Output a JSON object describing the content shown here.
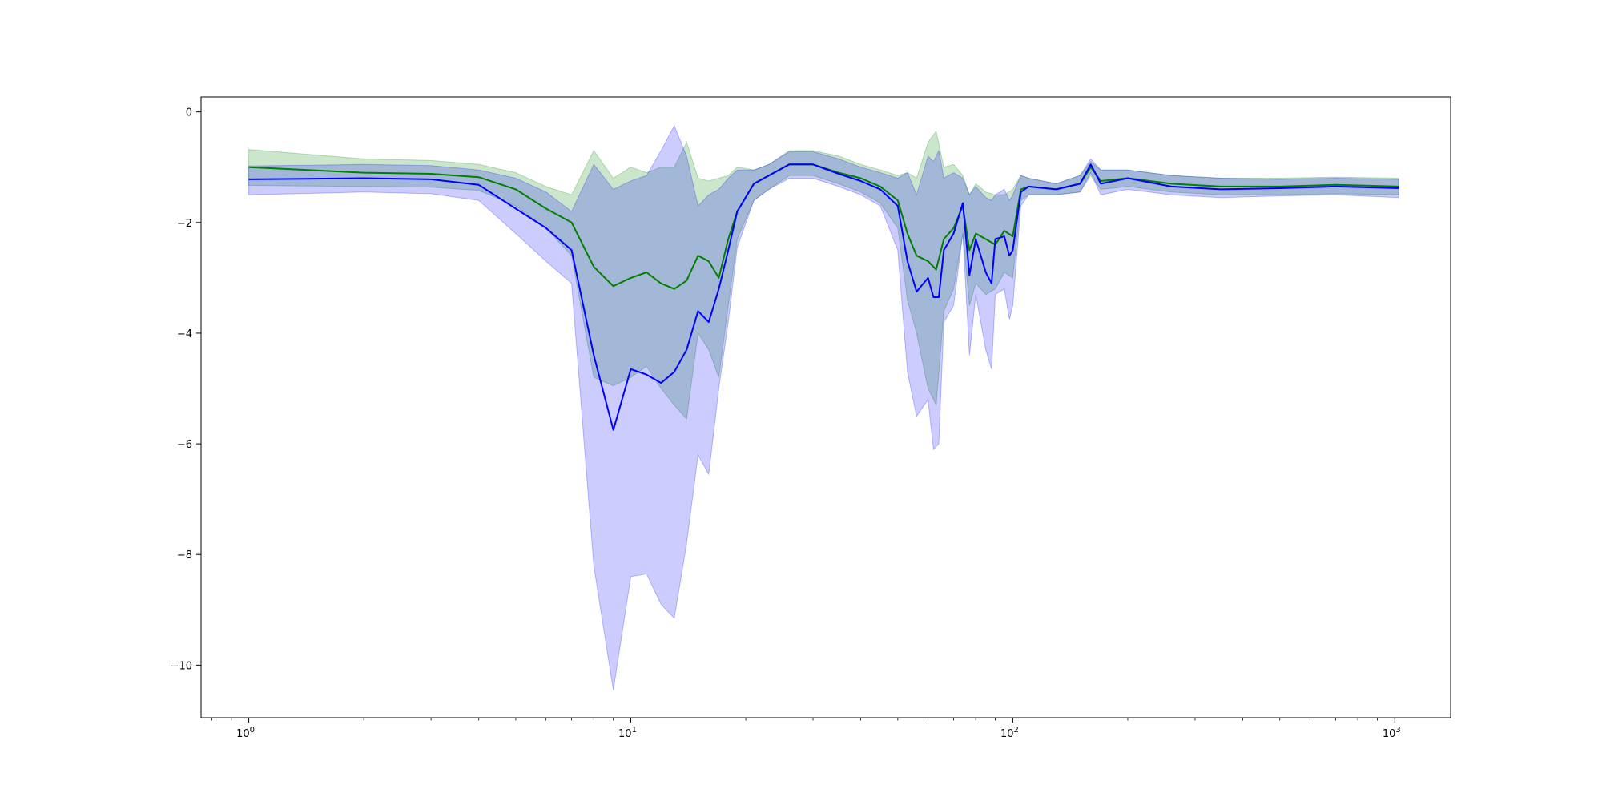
{
  "chart_data": {
    "type": "line",
    "title": "",
    "xlabel": "",
    "ylabel": "",
    "xscale": "log",
    "xlim": [
      0.75,
      1400
    ],
    "ylim": [
      -10.95,
      0.27
    ],
    "grid": false,
    "legend": "none",
    "x_ticks": [
      {
        "value": 1,
        "base": "10",
        "exp": "0"
      },
      {
        "value": 10,
        "base": "10",
        "exp": "1"
      },
      {
        "value": 100,
        "base": "10",
        "exp": "2"
      },
      {
        "value": 1000,
        "base": "10",
        "exp": "3"
      }
    ],
    "y_ticks": [
      {
        "value": 0,
        "label": "0"
      },
      {
        "value": -2,
        "label": "−2"
      },
      {
        "value": -4,
        "label": "−4"
      },
      {
        "value": -6,
        "label": "−6"
      },
      {
        "value": -8,
        "label": "−8"
      },
      {
        "value": -10,
        "label": "−10"
      }
    ],
    "series": [
      {
        "color": "#008000",
        "band_color": "#008000",
        "band_opacity": 0.2,
        "points": [
          [
            1,
            -1.0,
            -0.68,
            -1.33
          ],
          [
            2,
            -1.1,
            -0.85,
            -1.35
          ],
          [
            3,
            -1.12,
            -0.88,
            -1.36
          ],
          [
            4,
            -1.18,
            -0.95,
            -1.42
          ],
          [
            5,
            -1.4,
            -1.1,
            -1.7
          ],
          [
            6,
            -1.75,
            -1.35,
            -2.1
          ],
          [
            7,
            -2.0,
            -1.5,
            -2.6
          ],
          [
            8,
            -2.8,
            -0.7,
            -4.8
          ],
          [
            9,
            -3.15,
            -1.2,
            -4.95
          ],
          [
            10,
            -3.0,
            -1.0,
            -4.8
          ],
          [
            11,
            -2.9,
            -1.1,
            -4.6
          ],
          [
            12,
            -3.1,
            -1.0,
            -5.0
          ],
          [
            13,
            -3.2,
            -1.0,
            -5.3
          ],
          [
            14,
            -3.05,
            -0.55,
            -5.55
          ],
          [
            15,
            -2.6,
            -1.2,
            -4.0
          ],
          [
            16,
            -2.7,
            -1.25,
            -4.3
          ],
          [
            17,
            -3.0,
            -1.2,
            -4.8
          ],
          [
            18,
            -2.3,
            -1.15,
            -3.5
          ],
          [
            19,
            -1.8,
            -1.0,
            -2.3
          ],
          [
            21,
            -1.3,
            -1.05,
            -1.6
          ],
          [
            23,
            -1.15,
            -0.95,
            -1.4
          ],
          [
            26,
            -0.95,
            -0.7,
            -1.15
          ],
          [
            30,
            -0.95,
            -0.7,
            -1.15
          ],
          [
            35,
            -1.1,
            -0.8,
            -1.3
          ],
          [
            40,
            -1.2,
            -0.95,
            -1.45
          ],
          [
            45,
            -1.35,
            -1.05,
            -1.65
          ],
          [
            50,
            -1.6,
            -1.15,
            -2.1
          ],
          [
            53,
            -2.2,
            -1.1,
            -3.4
          ],
          [
            56,
            -2.6,
            -1.2,
            -4.0
          ],
          [
            60,
            -2.7,
            -0.55,
            -5.0
          ],
          [
            63,
            -2.85,
            -0.35,
            -5.3
          ],
          [
            66,
            -2.3,
            -1.0,
            -3.6
          ],
          [
            70,
            -2.1,
            -0.95,
            -3.2
          ],
          [
            74,
            -1.7,
            -1.15,
            -2.2
          ],
          [
            77,
            -2.5,
            -1.5,
            -3.5
          ],
          [
            80,
            -2.2,
            -1.3,
            -3.1
          ],
          [
            85,
            -2.3,
            -1.45,
            -3.3
          ],
          [
            90,
            -2.4,
            -1.5,
            -3.2
          ],
          [
            95,
            -2.15,
            -1.5,
            -2.9
          ],
          [
            100,
            -2.25,
            -1.4,
            -3.0
          ],
          [
            105,
            -1.4,
            -1.15,
            -1.6
          ],
          [
            110,
            -1.35,
            -1.2,
            -1.5
          ],
          [
            130,
            -1.4,
            -1.3,
            -1.5
          ],
          [
            150,
            -1.3,
            -1.15,
            -1.45
          ],
          [
            160,
            -1.0,
            -0.9,
            -1.15
          ],
          [
            170,
            -1.25,
            -1.05,
            -1.4
          ],
          [
            200,
            -1.2,
            -1.05,
            -1.35
          ],
          [
            260,
            -1.3,
            -1.15,
            -1.45
          ],
          [
            350,
            -1.35,
            -1.2,
            -1.5
          ],
          [
            500,
            -1.35,
            -1.2,
            -1.5
          ],
          [
            700,
            -1.32,
            -1.18,
            -1.48
          ],
          [
            1024,
            -1.35,
            -1.2,
            -1.5
          ]
        ]
      },
      {
        "color": "#0000ff",
        "band_color": "#0000ff",
        "band_opacity": 0.2,
        "points": [
          [
            1,
            -1.22,
            -0.98,
            -1.5
          ],
          [
            2,
            -1.2,
            -0.95,
            -1.45
          ],
          [
            3,
            -1.22,
            -0.97,
            -1.48
          ],
          [
            4,
            -1.32,
            -1.05,
            -1.6
          ],
          [
            5,
            -1.75,
            -1.2,
            -2.2
          ],
          [
            6,
            -2.1,
            -1.45,
            -2.7
          ],
          [
            7,
            -2.5,
            -1.8,
            -3.1
          ],
          [
            8,
            -4.4,
            -0.95,
            -8.2
          ],
          [
            9,
            -5.75,
            -1.4,
            -10.45
          ],
          [
            10,
            -4.65,
            -1.25,
            -8.4
          ],
          [
            11,
            -4.75,
            -1.15,
            -8.35
          ],
          [
            12,
            -4.9,
            -0.7,
            -8.9
          ],
          [
            13,
            -4.7,
            -0.25,
            -9.15
          ],
          [
            14,
            -4.3,
            -0.8,
            -7.8
          ],
          [
            15,
            -3.6,
            -1.7,
            -6.2
          ],
          [
            16,
            -3.8,
            -1.5,
            -6.55
          ],
          [
            17,
            -3.2,
            -1.4,
            -5.0
          ],
          [
            18,
            -2.5,
            -1.2,
            -3.8
          ],
          [
            19,
            -1.8,
            -1.05,
            -2.45
          ],
          [
            21,
            -1.3,
            -1.05,
            -1.6
          ],
          [
            23,
            -1.15,
            -0.95,
            -1.4
          ],
          [
            26,
            -0.95,
            -0.72,
            -1.2
          ],
          [
            30,
            -0.95,
            -0.72,
            -1.2
          ],
          [
            35,
            -1.12,
            -0.85,
            -1.35
          ],
          [
            40,
            -1.25,
            -1.0,
            -1.5
          ],
          [
            45,
            -1.4,
            -1.1,
            -1.7
          ],
          [
            50,
            -1.7,
            -1.2,
            -2.5
          ],
          [
            53,
            -2.7,
            -1.1,
            -4.7
          ],
          [
            56,
            -3.25,
            -1.5,
            -5.5
          ],
          [
            60,
            -3.0,
            -0.8,
            -5.2
          ],
          [
            62,
            -3.35,
            -0.9,
            -6.1
          ],
          [
            64,
            -3.35,
            -0.7,
            -6.0
          ],
          [
            66,
            -2.5,
            -1.2,
            -3.8
          ],
          [
            70,
            -2.2,
            -1.1,
            -3.5
          ],
          [
            74,
            -1.65,
            -1.2,
            -2.2
          ],
          [
            77,
            -2.95,
            -1.5,
            -4.4
          ],
          [
            80,
            -2.3,
            -1.35,
            -3.3
          ],
          [
            85,
            -2.9,
            -1.55,
            -4.3
          ],
          [
            88,
            -3.1,
            -1.6,
            -4.65
          ],
          [
            90,
            -2.3,
            -1.5,
            -3.3
          ],
          [
            95,
            -2.25,
            -1.4,
            -3.2
          ],
          [
            98,
            -2.6,
            -1.6,
            -3.75
          ],
          [
            100,
            -2.5,
            -1.5,
            -3.5
          ],
          [
            105,
            -1.45,
            -1.15,
            -1.7
          ],
          [
            110,
            -1.35,
            -1.2,
            -1.5
          ],
          [
            130,
            -1.4,
            -1.3,
            -1.5
          ],
          [
            150,
            -1.3,
            -1.15,
            -1.45
          ],
          [
            160,
            -0.95,
            -0.85,
            -1.1
          ],
          [
            170,
            -1.3,
            -1.05,
            -1.5
          ],
          [
            200,
            -1.2,
            -1.05,
            -1.4
          ],
          [
            260,
            -1.35,
            -1.15,
            -1.5
          ],
          [
            350,
            -1.4,
            -1.2,
            -1.55
          ],
          [
            500,
            -1.38,
            -1.22,
            -1.52
          ],
          [
            700,
            -1.35,
            -1.2,
            -1.5
          ],
          [
            1024,
            -1.38,
            -1.22,
            -1.55
          ]
        ]
      }
    ]
  }
}
